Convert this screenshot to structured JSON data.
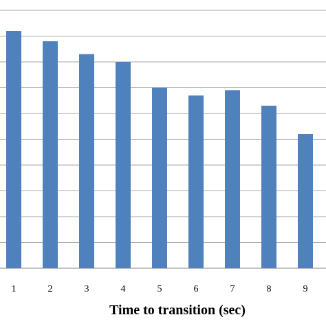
{
  "chart_data": {
    "type": "bar",
    "categories": [
      "1",
      "2",
      "3",
      "4",
      "5",
      "6",
      "7",
      "8",
      "9"
    ],
    "values": [
      9.2,
      8.8,
      8.3,
      8.0,
      7.0,
      6.7,
      6.9,
      6.3,
      5.2
    ],
    "title": "",
    "xlabel": "Time to transition (sec)",
    "ylabel": "",
    "ylim": [
      0,
      10.4
    ],
    "grid": true,
    "legend": "none",
    "bar_color": "#4f81bd",
    "grid_color": "#a6a6a6"
  }
}
